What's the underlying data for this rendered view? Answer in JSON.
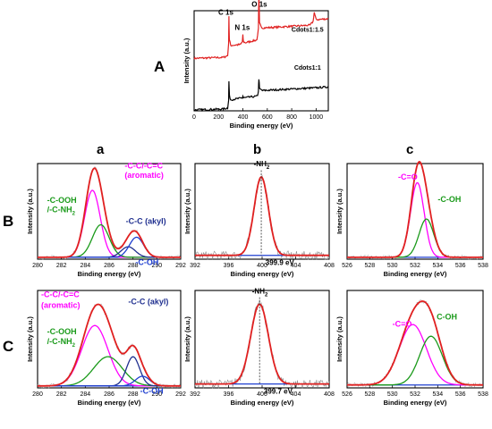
{
  "panel_letters": {
    "A": "A",
    "col_a": "a",
    "col_b": "b",
    "col_c": "c",
    "row_B": "B",
    "row_C": "C"
  },
  "colors": {
    "red": "#e02020",
    "black": "#000000",
    "blue": "#1f3fd0",
    "magenta": "#ff00ff",
    "green": "#1a9a1a",
    "navy": "#1f2f8f",
    "noise": "#8c8c8c"
  },
  "chart_data": [
    {
      "id": "A",
      "type": "line",
      "xlabel": "Binding energy (eV)",
      "ylabel": "Intensity (a.u.)",
      "xlim": [
        0,
        1100
      ],
      "ylim": [
        0,
        1
      ],
      "xticks": [
        "0",
        "200",
        "400",
        "600",
        "800",
        "1000"
      ],
      "xtick_values": [
        0,
        200,
        400,
        600,
        800,
        1000
      ],
      "series": [
        {
          "name": "Cdots1:1.5",
          "color": "#e02020",
          "offset": 0.55,
          "points": [
            [
              0,
              0.02
            ],
            [
              240,
              0.03
            ],
            [
              275,
              0.05
            ],
            [
              283,
              0.18
            ],
            [
              285,
              0.48
            ],
            [
              289,
              0.22
            ],
            [
              300,
              0.16
            ],
            [
              380,
              0.17
            ],
            [
              395,
              0.2
            ],
            [
              400,
              0.27
            ],
            [
              404,
              0.2
            ],
            [
              420,
              0.19
            ],
            [
              515,
              0.22
            ],
            [
              527,
              0.34
            ],
            [
              531,
              0.74
            ],
            [
              536,
              0.4
            ],
            [
              560,
              0.35
            ],
            [
              700,
              0.36
            ],
            [
              950,
              0.38
            ],
            [
              975,
              0.42
            ],
            [
              985,
              0.52
            ],
            [
              1000,
              0.44
            ],
            [
              1100,
              0.45
            ]
          ]
        },
        {
          "name": "Cdots1:1",
          "color": "#000000",
          "offset": 0.0,
          "points": [
            [
              0,
              0.01
            ],
            [
              240,
              0.02
            ],
            [
              275,
              0.03
            ],
            [
              283,
              0.12
            ],
            [
              285,
              0.32
            ],
            [
              290,
              0.16
            ],
            [
              300,
              0.12
            ],
            [
              395,
              0.14
            ],
            [
              400,
              0.16
            ],
            [
              405,
              0.14
            ],
            [
              520,
              0.16
            ],
            [
              527,
              0.22
            ],
            [
              531,
              0.35
            ],
            [
              536,
              0.24
            ],
            [
              560,
              0.22
            ],
            [
              700,
              0.23
            ],
            [
              1000,
              0.25
            ],
            [
              1100,
              0.26
            ]
          ]
        }
      ],
      "annotations": [
        {
          "text": "C 1s",
          "x": 260,
          "y": 0.96
        },
        {
          "text": "N 1s",
          "x": 395,
          "y": 0.81
        },
        {
          "text": "O 1s",
          "x": 535,
          "y": 1.04
        },
        {
          "text": "Cdots1:1.5",
          "x": 930,
          "y": 0.79,
          "color": "#e02020"
        },
        {
          "text": "Cdots1:1",
          "x": 930,
          "y": 0.41
        }
      ]
    },
    {
      "id": "Ba",
      "type": "line",
      "xlabel": "Binding energy (eV)",
      "ylabel": "Intensity (a.u.)",
      "xlim": [
        280,
        292
      ],
      "ylim": [
        0,
        1
      ],
      "xticks": [
        "280",
        "282",
        "284",
        "286",
        "288",
        "290",
        "292"
      ],
      "xtick_values": [
        280,
        282,
        284,
        286,
        288,
        290,
        292
      ],
      "background": 0.02,
      "components": [
        {
          "name": "-C-C/-C=C (aromatic)",
          "center": 284.6,
          "height": 0.7,
          "sigma": 0.65,
          "color": "#ff00ff"
        },
        {
          "name": "-C-OOH /-C-NH2",
          "center": 285.3,
          "height": 0.34,
          "sigma": 0.7,
          "color": "#1a9a1a"
        },
        {
          "name": "-C-C (akyl)",
          "center": 287.6,
          "height": 0.11,
          "sigma": 0.6,
          "color": "#1f2f8f"
        },
        {
          "name": "-C-OH",
          "center": 288.3,
          "height": 0.21,
          "sigma": 0.6,
          "color": "#1f3fd0"
        }
      ],
      "annotations": [
        {
          "text": "-C-C/-C=C",
          "x": 287.3,
          "y": 0.95,
          "color": "#ff00ff"
        },
        {
          "text": "(aromatic)",
          "x": 287.3,
          "y": 0.85,
          "color": "#ff00ff"
        },
        {
          "text": "-C-OOH",
          "x": 280.8,
          "y": 0.59,
          "color": "#1a9a1a"
        },
        {
          "text": "/-C-NH",
          "sub": "2",
          "x": 280.8,
          "y": 0.49,
          "color": "#1a9a1a"
        },
        {
          "text": "-C-C (akyl)",
          "x": 287.4,
          "y": 0.37,
          "color": "#1f2f8f"
        },
        {
          "text": "-C-OH",
          "x": 288.2,
          "y": -0.06,
          "color": "#1f3fd0"
        }
      ]
    },
    {
      "id": "Bb",
      "type": "line",
      "xlabel": "Binding energy (eV)",
      "ylabel": "Intensity (a.u.)",
      "xlim": [
        392,
        408
      ],
      "ylim": [
        0,
        1
      ],
      "xticks": [
        "392",
        "396",
        "400",
        "404",
        "408"
      ],
      "xtick_values": [
        392,
        396,
        400,
        404,
        408
      ],
      "background": 0.04,
      "marker_x": 399.9,
      "components": [
        {
          "name": "-NH2",
          "center": 399.9,
          "height": 0.82,
          "sigma": 0.85,
          "color": "#e02020"
        }
      ],
      "annotations": [
        {
          "text": "-NH",
          "sub": "2",
          "x": 399.0,
          "y": 0.97,
          "color": "#000000"
        },
        {
          "text": "399.9 eV",
          "x": 400.4,
          "y": -0.06,
          "color": "#000000"
        }
      ]
    },
    {
      "id": "Bc",
      "type": "line",
      "xlabel": "Binding energy (eV)",
      "ylabel": "Intensity (a.u.)",
      "xlim": [
        526,
        538
      ],
      "ylim": [
        0,
        1
      ],
      "xticks": [
        "526",
        "528",
        "530",
        "532",
        "534",
        "536",
        "538"
      ],
      "xtick_values": [
        526,
        528,
        530,
        532,
        534,
        536,
        538
      ],
      "background": 0.02,
      "components": [
        {
          "name": "-C=O",
          "center": 532.2,
          "height": 0.78,
          "sigma": 0.6,
          "color": "#ff00ff"
        },
        {
          "name": "-C-OH",
          "center": 533.0,
          "height": 0.4,
          "sigma": 0.65,
          "color": "#1a9a1a"
        }
      ],
      "annotations": [
        {
          "text": "-C=O",
          "x": 530.5,
          "y": 0.83,
          "color": "#ff00ff"
        },
        {
          "text": "-C-OH",
          "x": 534.0,
          "y": 0.6,
          "color": "#1a9a1a"
        }
      ]
    },
    {
      "id": "Ca",
      "type": "line",
      "xlabel": "Binding energy (eV)",
      "ylabel": "Intensity (a.u.)",
      "xlim": [
        280,
        292
      ],
      "ylim": [
        0,
        1
      ],
      "xticks": [
        "280",
        "282",
        "284",
        "286",
        "288",
        "290",
        "292"
      ],
      "xtick_values": [
        280,
        282,
        284,
        286,
        288,
        290,
        292
      ],
      "background": 0.02,
      "components": [
        {
          "name": "-C-C/-C=C (aromatic)",
          "center": 284.8,
          "height": 0.62,
          "sigma": 1.1,
          "color": "#ff00ff"
        },
        {
          "name": "-C-OOH /-C-NH2",
          "center": 285.9,
          "height": 0.3,
          "sigma": 1.2,
          "color": "#1a9a1a"
        },
        {
          "name": "-C-C (akyl)",
          "center": 288.0,
          "height": 0.3,
          "sigma": 0.55,
          "color": "#1f2f8f"
        },
        {
          "name": "-C-OH",
          "center": 288.8,
          "height": 0.1,
          "sigma": 0.6,
          "color": "#1f3fd0"
        }
      ],
      "annotations": [
        {
          "text": "-C-C/-C=C",
          "x": 280.3,
          "y": 0.93,
          "color": "#ff00ff"
        },
        {
          "text": "(aromatic)",
          "x": 280.3,
          "y": 0.82,
          "color": "#ff00ff"
        },
        {
          "text": "-C-OOH",
          "x": 280.8,
          "y": 0.55,
          "color": "#1a9a1a"
        },
        {
          "text": "/-C-NH",
          "sub": "2",
          "x": 280.8,
          "y": 0.45,
          "color": "#1a9a1a"
        },
        {
          "text": "-C-C (akyl)",
          "x": 287.6,
          "y": 0.86,
          "color": "#1f2f8f"
        },
        {
          "text": "-C-OH",
          "x": 288.6,
          "y": -0.06,
          "color": "#1f3fd0"
        }
      ]
    },
    {
      "id": "Cb",
      "type": "line",
      "xlabel": "Binding energy (eV)",
      "ylabel": "Intensity (a.u.)",
      "xlim": [
        392,
        408
      ],
      "ylim": [
        0,
        1
      ],
      "xticks": [
        "392",
        "396",
        "400",
        "404",
        "408"
      ],
      "xtick_values": [
        392,
        396,
        400,
        404,
        408
      ],
      "background": 0.04,
      "marker_x": 399.7,
      "components": [
        {
          "name": "-NH2",
          "center": 399.7,
          "height": 0.82,
          "sigma": 1.05,
          "color": "#e02020"
        }
      ],
      "annotations": [
        {
          "text": "-NH",
          "sub": "2",
          "x": 398.8,
          "y": 0.97,
          "color": "#000000"
        },
        {
          "text": "399.7 eV",
          "x": 400.2,
          "y": -0.06,
          "color": "#000000"
        }
      ]
    },
    {
      "id": "Cc",
      "type": "line",
      "xlabel": "Binding energy (eV)",
      "ylabel": "Intensity (a.u.)",
      "xlim": [
        526,
        538
      ],
      "ylim": [
        0,
        1
      ],
      "xticks": [
        "526",
        "528",
        "530",
        "532",
        "534",
        "536",
        "538"
      ],
      "xtick_values": [
        526,
        528,
        530,
        532,
        534,
        536,
        538
      ],
      "background": 0.03,
      "components": [
        {
          "name": "-C=O",
          "center": 531.8,
          "height": 0.62,
          "sigma": 1.2,
          "color": "#ff00ff"
        },
        {
          "name": "C-OH",
          "center": 533.4,
          "height": 0.5,
          "sigma": 1.0,
          "color": "#1a9a1a"
        }
      ],
      "annotations": [
        {
          "text": "-C=O",
          "x": 530.0,
          "y": 0.63,
          "color": "#ff00ff"
        },
        {
          "text": "C-OH",
          "x": 533.9,
          "y": 0.7,
          "color": "#1a9a1a"
        }
      ]
    }
  ]
}
